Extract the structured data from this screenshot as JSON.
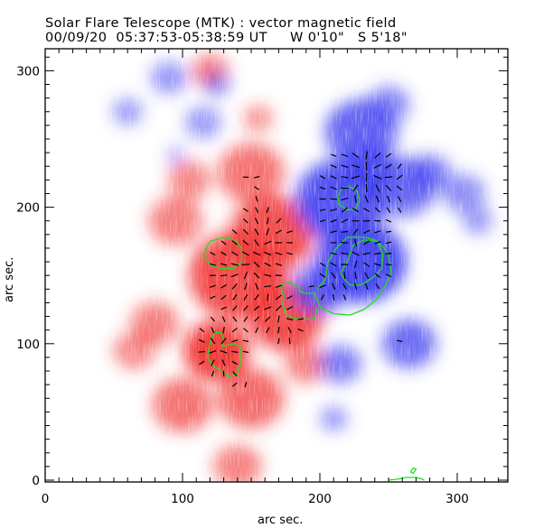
{
  "title": {
    "line1": "Solar Flare Telescope (MTK) : vector magnetic field",
    "line2": "00/09/20  05:37:53-05:38:59 UT     W 0'10\"   S 5'18\""
  },
  "chart_data": {
    "type": "heatmap",
    "title": "Solar Flare Telescope (MTK) : vector magnetic field",
    "subtitle": "00/09/20  05:37:53-05:38:59 UT     W 0'10\"   S 5'18\"",
    "xlabel": "arc sec.",
    "ylabel": "arc sec.",
    "xlim": [
      0,
      336
    ],
    "ylim": [
      -1,
      316
    ],
    "x_ticks": [
      0,
      100,
      200,
      300
    ],
    "y_ticks": [
      0,
      100,
      200,
      300
    ],
    "x_minor_step": 10,
    "y_minor_step": 10,
    "colors": {
      "positive": "#f03030",
      "negative": "#3c3cf0",
      "contour": "#22dd22",
      "vector": "#000000"
    },
    "polarity_regions": [
      {
        "polarity": "positive",
        "x": 100,
        "y": 55,
        "r": 20,
        "strength": 0.55
      },
      {
        "polarity": "positive",
        "x": 140,
        "y": 150,
        "r": 32,
        "strength": 0.9
      },
      {
        "polarity": "positive",
        "x": 125,
        "y": 95,
        "r": 22,
        "strength": 1.0
      },
      {
        "polarity": "positive",
        "x": 165,
        "y": 180,
        "r": 28,
        "strength": 0.85
      },
      {
        "polarity": "positive",
        "x": 175,
        "y": 120,
        "r": 25,
        "strength": 0.9
      },
      {
        "polarity": "positive",
        "x": 150,
        "y": 60,
        "r": 22,
        "strength": 0.6
      },
      {
        "polarity": "positive",
        "x": 80,
        "y": 115,
        "r": 16,
        "strength": 0.45
      },
      {
        "polarity": "positive",
        "x": 95,
        "y": 190,
        "r": 18,
        "strength": 0.45
      },
      {
        "polarity": "positive",
        "x": 150,
        "y": 225,
        "r": 22,
        "strength": 0.55
      },
      {
        "polarity": "positive",
        "x": 120,
        "y": 300,
        "r": 12,
        "strength": 0.5
      },
      {
        "polarity": "positive",
        "x": 65,
        "y": 95,
        "r": 14,
        "strength": 0.35
      },
      {
        "polarity": "positive",
        "x": 140,
        "y": 10,
        "r": 16,
        "strength": 0.45
      },
      {
        "polarity": "positive",
        "x": 190,
        "y": 85,
        "r": 14,
        "strength": 0.45
      },
      {
        "polarity": "positive",
        "x": 155,
        "y": 265,
        "r": 10,
        "strength": 0.3
      },
      {
        "polarity": "positive",
        "x": 105,
        "y": 220,
        "r": 14,
        "strength": 0.4
      },
      {
        "polarity": "negative",
        "x": 230,
        "y": 160,
        "r": 30,
        "strength": 1.0
      },
      {
        "polarity": "negative",
        "x": 215,
        "y": 205,
        "r": 30,
        "strength": 0.9
      },
      {
        "polarity": "negative",
        "x": 230,
        "y": 255,
        "r": 24,
        "strength": 0.75
      },
      {
        "polarity": "negative",
        "x": 260,
        "y": 215,
        "r": 22,
        "strength": 0.7
      },
      {
        "polarity": "negative",
        "x": 200,
        "y": 140,
        "r": 18,
        "strength": 0.8
      },
      {
        "polarity": "negative",
        "x": 250,
        "y": 275,
        "r": 14,
        "strength": 0.45
      },
      {
        "polarity": "negative",
        "x": 280,
        "y": 225,
        "r": 14,
        "strength": 0.5
      },
      {
        "polarity": "negative",
        "x": 265,
        "y": 100,
        "r": 18,
        "strength": 0.65
      },
      {
        "polarity": "negative",
        "x": 215,
        "y": 85,
        "r": 14,
        "strength": 0.55
      },
      {
        "polarity": "negative",
        "x": 305,
        "y": 210,
        "r": 14,
        "strength": 0.4
      },
      {
        "polarity": "negative",
        "x": 315,
        "y": 190,
        "r": 10,
        "strength": 0.3
      },
      {
        "polarity": "negative",
        "x": 210,
        "y": 45,
        "r": 9,
        "strength": 0.35
      },
      {
        "polarity": "negative",
        "x": 90,
        "y": 295,
        "r": 12,
        "strength": 0.35
      },
      {
        "polarity": "negative",
        "x": 60,
        "y": 270,
        "r": 10,
        "strength": 0.3
      },
      {
        "polarity": "negative",
        "x": 125,
        "y": 290,
        "r": 9,
        "strength": 0.35
      },
      {
        "polarity": "negative",
        "x": 115,
        "y": 262,
        "r": 12,
        "strength": 0.3
      },
      {
        "polarity": "negative",
        "x": 95,
        "y": 238,
        "r": 6,
        "strength": 0.25
      },
      {
        "polarity": "negative",
        "x": 235,
        "y": 228,
        "r": 18,
        "strength": 0.8
      }
    ],
    "contours": [
      {
        "name": "positive-core-1",
        "points": [
          [
            115,
            165
          ],
          [
            120,
            175
          ],
          [
            130,
            178
          ],
          [
            138,
            176
          ],
          [
            143,
            170
          ],
          [
            143,
            160
          ],
          [
            137,
            155
          ],
          [
            128,
            155
          ],
          [
            120,
            158
          ],
          [
            115,
            165
          ]
        ]
      },
      {
        "name": "positive-core-2",
        "points": [
          [
            118,
            90
          ],
          [
            120,
            100
          ],
          [
            123,
            108
          ],
          [
            128,
            108
          ],
          [
            130,
            103
          ],
          [
            129,
            98
          ],
          [
            138,
            100
          ],
          [
            142,
            98
          ],
          [
            142,
            85
          ],
          [
            140,
            78
          ],
          [
            134,
            76
          ],
          [
            128,
            80
          ],
          [
            122,
            84
          ],
          [
            118,
            90
          ]
        ]
      },
      {
        "name": "positive-edge",
        "points": [
          [
            171,
            143
          ],
          [
            178,
            145
          ],
          [
            184,
            142
          ],
          [
            186,
            138
          ],
          [
            189,
            137
          ],
          [
            196,
            137
          ],
          [
            198,
            132
          ],
          [
            201,
            126
          ],
          [
            210,
            122
          ],
          [
            222,
            121
          ],
          [
            232,
            125
          ],
          [
            241,
            132
          ],
          [
            248,
            143
          ],
          [
            252,
            152
          ],
          [
            250,
            165
          ],
          [
            247,
            170
          ],
          [
            240,
            176
          ],
          [
            232,
            178
          ],
          [
            220,
            178
          ],
          [
            212,
            170
          ],
          [
            206,
            160
          ],
          [
            204,
            147
          ],
          [
            198,
            140
          ]
        ]
      },
      {
        "name": "positive-edge-2",
        "points": [
          [
            171,
            143
          ],
          [
            174,
            135
          ],
          [
            173,
            129
          ],
          [
            175,
            122
          ],
          [
            180,
            119
          ],
          [
            187,
            118
          ],
          [
            196,
            118
          ],
          [
            198,
            126
          ]
        ]
      },
      {
        "name": "negative-core-1",
        "points": [
          [
            213,
            208
          ],
          [
            216,
            214
          ],
          [
            222,
            215
          ],
          [
            227,
            212
          ],
          [
            229,
            205
          ],
          [
            226,
            199
          ],
          [
            220,
            198
          ],
          [
            214,
            202
          ],
          [
            213,
            208
          ]
        ]
      },
      {
        "name": "negative-core-2",
        "points": [
          [
            215,
            152
          ],
          [
            220,
            160
          ],
          [
            224,
            172
          ],
          [
            232,
            176
          ],
          [
            242,
            175
          ],
          [
            246,
            165
          ],
          [
            245,
            155
          ],
          [
            238,
            148
          ],
          [
            230,
            143
          ],
          [
            222,
            143
          ],
          [
            218,
            147
          ],
          [
            215,
            152
          ]
        ]
      },
      {
        "name": "bottom-contour",
        "points": [
          [
            250,
            0
          ],
          [
            258,
            1
          ],
          [
            262,
            2
          ],
          [
            270,
            2
          ],
          [
            274,
            1
          ],
          [
            276,
            0
          ]
        ]
      },
      {
        "name": "bottom-small",
        "points": [
          [
            266,
            6
          ],
          [
            268,
            9
          ],
          [
            270,
            8
          ],
          [
            268,
            5
          ],
          [
            266,
            6
          ]
        ]
      }
    ],
    "vector_field_note": "transverse field vectors (black dashes) over the active region, length ~ field strength, direction ~ azimuth"
  }
}
